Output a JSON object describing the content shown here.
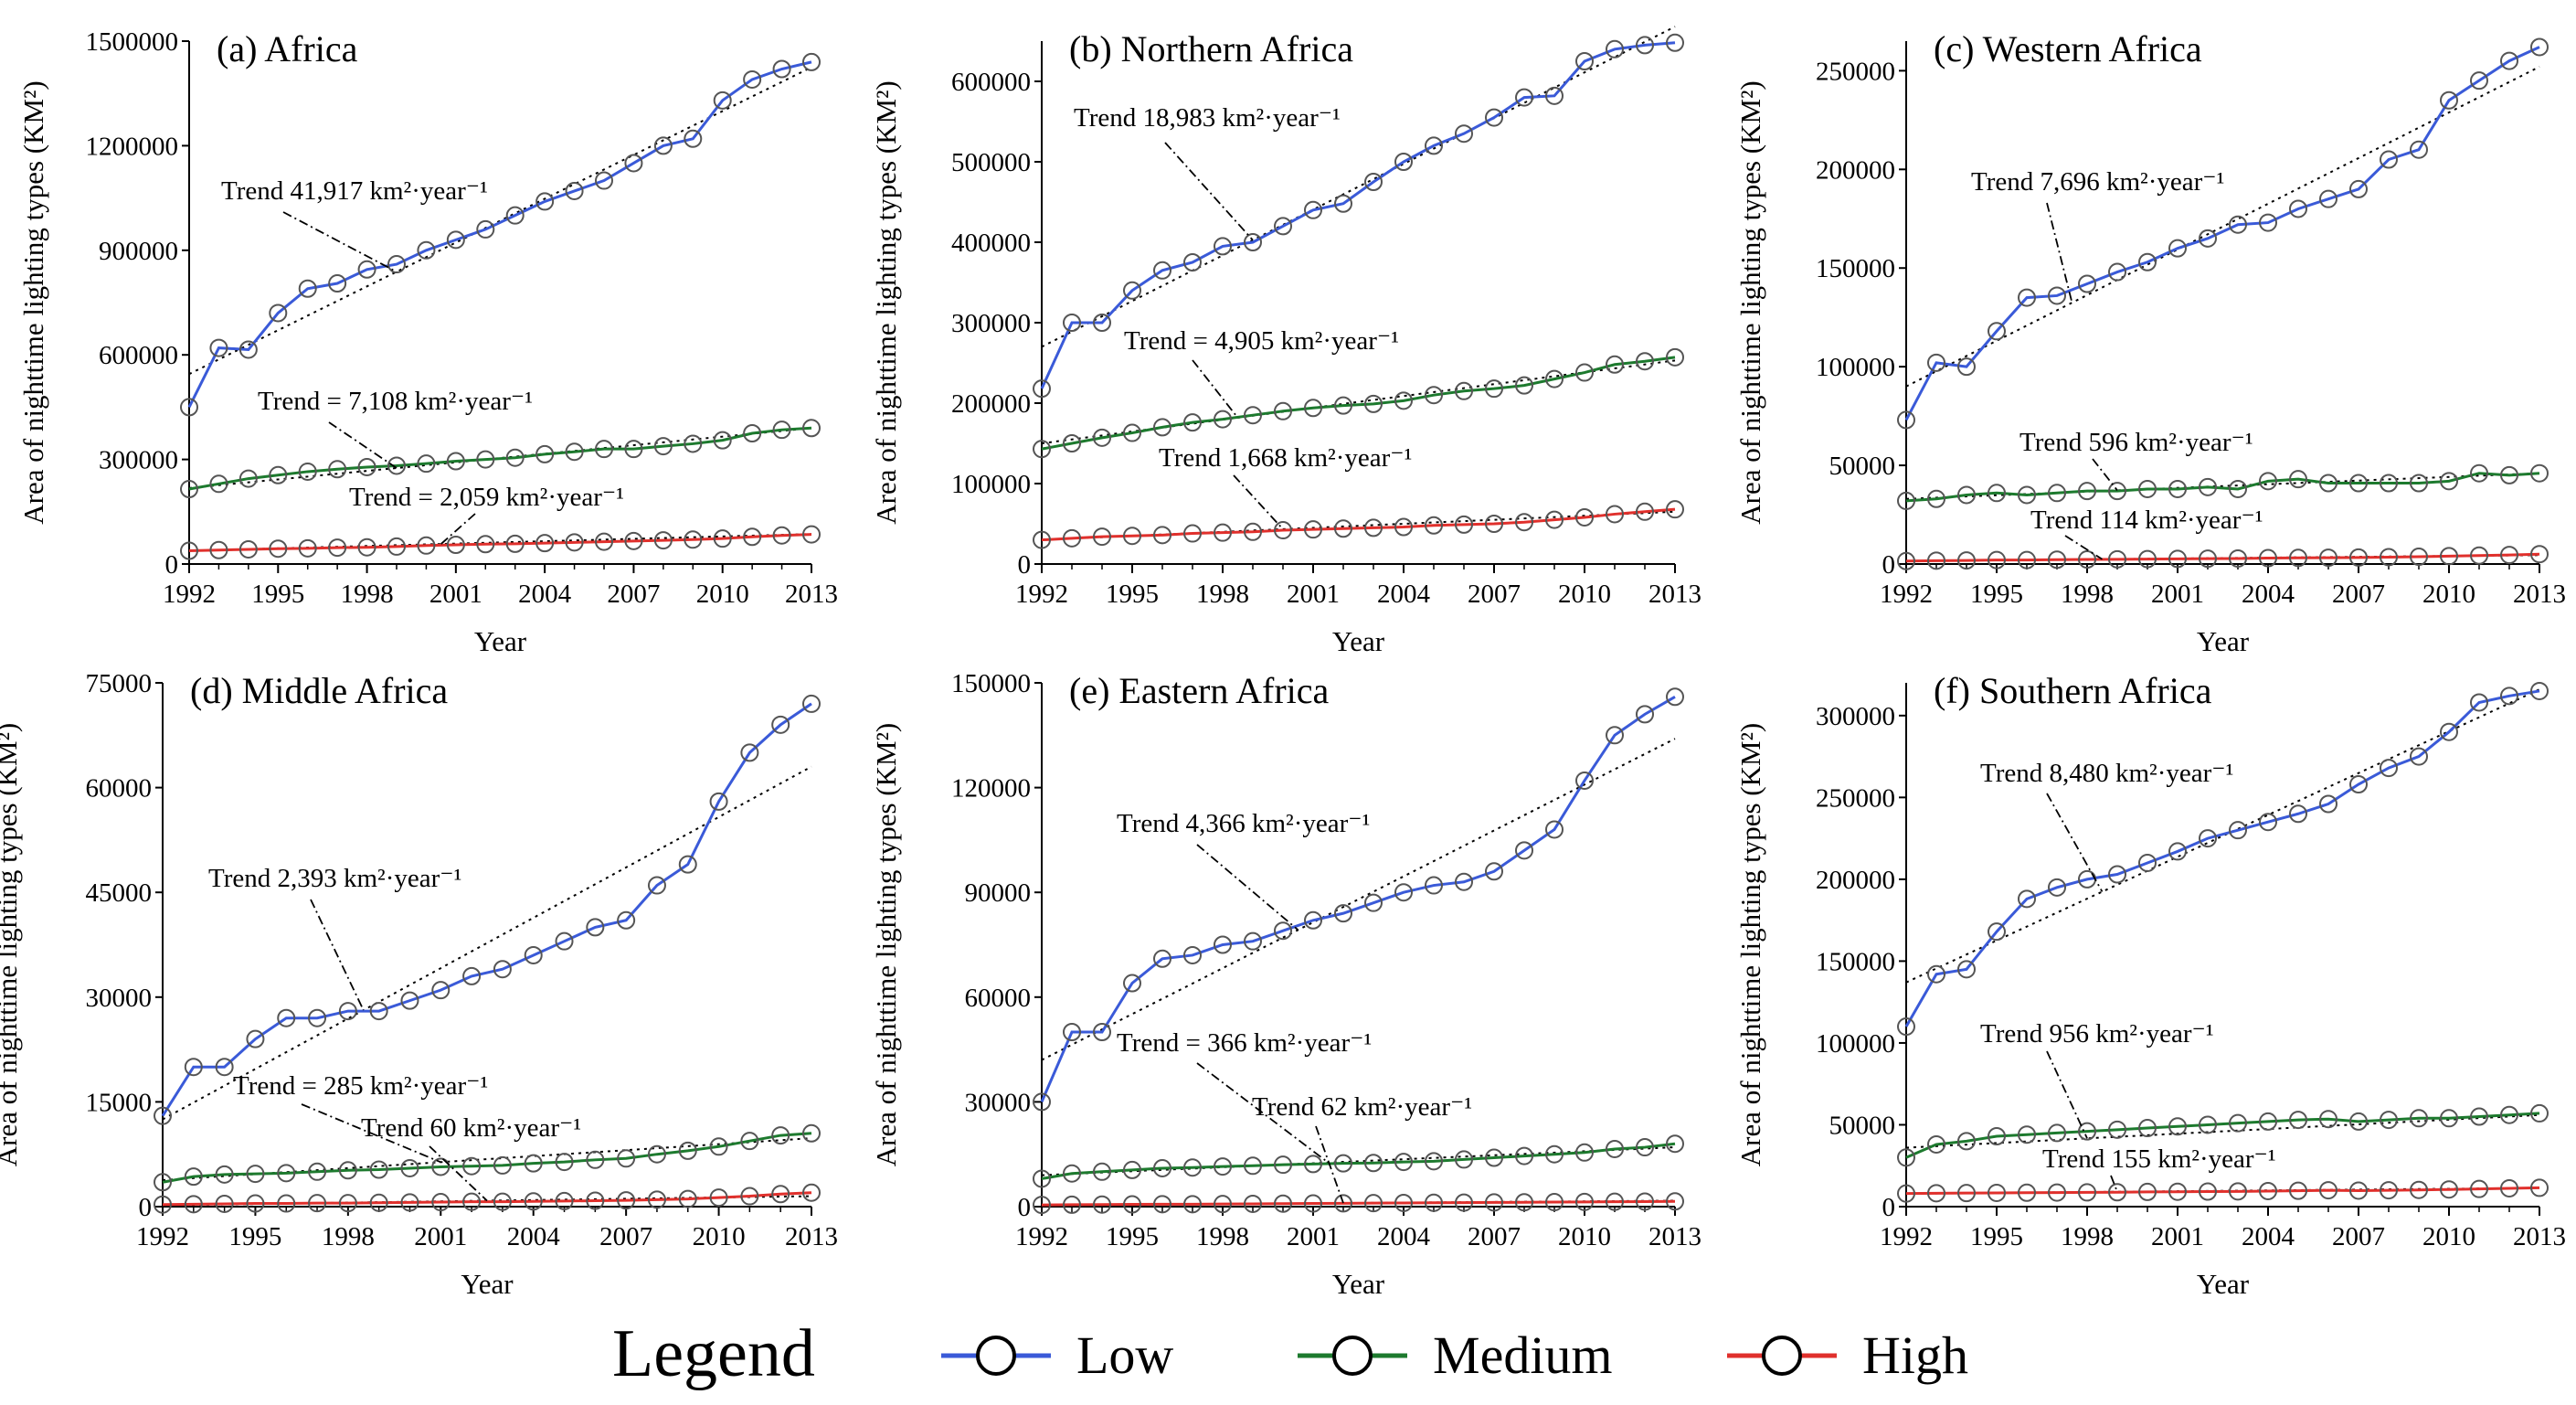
{
  "legend": {
    "title": "Legend",
    "items": [
      {
        "label": "Low",
        "color": "#3a5ad8"
      },
      {
        "label": "Medium",
        "color": "#1d7a2e"
      },
      {
        "label": "High",
        "color": "#e0302c"
      }
    ]
  },
  "chart_data": [
    {
      "type": "line",
      "title": "(a) Africa",
      "xlabel": "Year",
      "ylabel": "Area of nighttime lighting types (KM²)",
      "x": [
        1992,
        1993,
        1994,
        1995,
        1996,
        1997,
        1998,
        1999,
        2000,
        2001,
        2002,
        2003,
        2004,
        2005,
        2006,
        2007,
        2008,
        2009,
        2010,
        2011,
        2012,
        2013
      ],
      "xticks": [
        1992,
        1995,
        1998,
        2001,
        2004,
        2007,
        2010,
        2013
      ],
      "ylim": [
        0,
        1500000
      ],
      "yticks": [
        0,
        300000,
        600000,
        900000,
        1200000,
        1500000
      ],
      "series": [
        {
          "name": "Low",
          "values": [
            450000,
            620000,
            615000,
            720000,
            790000,
            805000,
            845000,
            860000,
            900000,
            930000,
            960000,
            1000000,
            1040000,
            1070000,
            1100000,
            1150000,
            1200000,
            1220000,
            1330000,
            1390000,
            1420000,
            1440000
          ]
        },
        {
          "name": "Medium",
          "values": [
            215000,
            230000,
            245000,
            255000,
            265000,
            272000,
            278000,
            282000,
            288000,
            295000,
            300000,
            305000,
            315000,
            322000,
            330000,
            330000,
            338000,
            345000,
            355000,
            375000,
            385000,
            390000
          ]
        },
        {
          "name": "High",
          "values": [
            38000,
            40000,
            42000,
            44000,
            45000,
            47000,
            48000,
            50000,
            53000,
            55000,
            57000,
            58000,
            60000,
            62000,
            64000,
            66000,
            68000,
            70000,
            73000,
            78000,
            82000,
            85000
          ]
        }
      ],
      "trends": [
        {
          "label": "Trend   41,917 km²·year⁻¹",
          "start": 545000,
          "end": 1425000
        },
        {
          "label": "Trend = 7,108 km²·year⁻¹",
          "start": 218000,
          "end": 390000
        },
        {
          "label": "Trend = 2,059 km²·year⁻¹",
          "start": 38000,
          "end": 86000
        }
      ]
    },
    {
      "type": "line",
      "title": "(b) Northern Africa",
      "xlabel": "Year",
      "ylabel": "Area of nighttime lighting types (KM²)",
      "x": [
        1992,
        1993,
        1994,
        1995,
        1996,
        1997,
        1998,
        1999,
        2000,
        2001,
        2002,
        2003,
        2004,
        2005,
        2006,
        2007,
        2008,
        2009,
        2010,
        2011,
        2012,
        2013
      ],
      "xticks": [
        1992,
        1995,
        1998,
        2001,
        2004,
        2007,
        2010,
        2013
      ],
      "ylim": [
        0,
        650000
      ],
      "yticks": [
        0,
        100000,
        200000,
        300000,
        400000,
        500000,
        600000
      ],
      "series": [
        {
          "name": "Low",
          "values": [
            218000,
            300000,
            300000,
            340000,
            365000,
            375000,
            395000,
            400000,
            420000,
            440000,
            448000,
            475000,
            500000,
            520000,
            535000,
            555000,
            580000,
            582000,
            625000,
            640000,
            645000,
            648000
          ]
        },
        {
          "name": "Medium",
          "values": [
            143000,
            150000,
            157000,
            163000,
            170000,
            176000,
            180000,
            185000,
            190000,
            194000,
            197000,
            199000,
            203000,
            210000,
            215000,
            218000,
            222000,
            230000,
            238000,
            248000,
            252000,
            257000
          ]
        },
        {
          "name": "High",
          "values": [
            30000,
            32000,
            34000,
            35000,
            36000,
            38000,
            39000,
            40000,
            42000,
            43000,
            44000,
            45000,
            46000,
            48000,
            49000,
            50000,
            52000,
            55000,
            58000,
            62000,
            65000,
            68000
          ]
        }
      ],
      "trends": [
        {
          "label": "Trend   18,983 km²·year⁻¹",
          "start": 270000,
          "end": 668000
        },
        {
          "label": "Trend = 4,905 km²·year⁻¹",
          "start": 150000,
          "end": 253000
        },
        {
          "label": "Trend   1,668 km²·year⁻¹",
          "start": 30000,
          "end": 65000
        }
      ]
    },
    {
      "type": "line",
      "title": "(c) Western Africa",
      "xlabel": "Year",
      "ylabel": "Area of nighttime lighting types (KM²)",
      "x": [
        1992,
        1993,
        1994,
        1995,
        1996,
        1997,
        1998,
        1999,
        2000,
        2001,
        2002,
        2003,
        2004,
        2005,
        2006,
        2007,
        2008,
        2009,
        2010,
        2011,
        2012,
        2013
      ],
      "xticks": [
        1992,
        1995,
        1998,
        2001,
        2004,
        2007,
        2010,
        2013
      ],
      "ylim": [
        0,
        265000
      ],
      "yticks": [
        0,
        50000,
        100000,
        150000,
        200000,
        250000
      ],
      "series": [
        {
          "name": "Low",
          "values": [
            73000,
            102000,
            100000,
            118000,
            135000,
            136000,
            142000,
            148000,
            153000,
            160000,
            165000,
            172000,
            173000,
            180000,
            185000,
            190000,
            205000,
            210000,
            235000,
            245000,
            255000,
            262000
          ]
        },
        {
          "name": "Medium",
          "values": [
            32000,
            33000,
            35000,
            36000,
            35000,
            36000,
            37000,
            37000,
            38000,
            38000,
            39000,
            38000,
            42000,
            43000,
            41000,
            41000,
            41000,
            41000,
            42000,
            46000,
            45000,
            46000
          ]
        },
        {
          "name": "High",
          "values": [
            1500,
            1700,
            1800,
            2000,
            2000,
            2200,
            2300,
            2400,
            2500,
            2600,
            2700,
            2800,
            3000,
            3100,
            3200,
            3300,
            3500,
            3700,
            4000,
            4300,
            4600,
            5000
          ]
        }
      ],
      "trends": [
        {
          "label": "Trend   7,696 km²·year⁻¹",
          "start": 90000,
          "end": 252000
        },
        {
          "label": "Trend   596 km²·year⁻¹",
          "start": 33000,
          "end": 46000
        },
        {
          "label": "Trend   114 km²·year⁻¹",
          "start": 1500,
          "end": 4500
        }
      ]
    },
    {
      "type": "line",
      "title": "(d) Middle Africa",
      "xlabel": "Year",
      "ylabel": "Area of nighttime lighting types (KM²)",
      "x": [
        1992,
        1993,
        1994,
        1995,
        1996,
        1997,
        1998,
        1999,
        2000,
        2001,
        2002,
        2003,
        2004,
        2005,
        2006,
        2007,
        2008,
        2009,
        2010,
        2011,
        2012,
        2013
      ],
      "xticks": [
        1992,
        1995,
        1998,
        2001,
        2004,
        2007,
        2010,
        2013
      ],
      "ylim": [
        0,
        75000
      ],
      "yticks": [
        0,
        15000,
        30000,
        45000,
        60000,
        75000
      ],
      "series": [
        {
          "name": "Low",
          "values": [
            13000,
            20000,
            20000,
            24000,
            27000,
            27000,
            28000,
            28000,
            29500,
            31000,
            33000,
            34000,
            36000,
            38000,
            40000,
            41000,
            46000,
            49000,
            58000,
            65000,
            69000,
            72000
          ]
        },
        {
          "name": "Medium",
          "values": [
            3500,
            4300,
            4600,
            4700,
            4800,
            5000,
            5200,
            5300,
            5500,
            5700,
            5800,
            5900,
            6200,
            6400,
            6700,
            6900,
            7500,
            8000,
            8600,
            9400,
            10200,
            10500
          ]
        },
        {
          "name": "High",
          "values": [
            300,
            350,
            400,
            450,
            450,
            500,
            500,
            550,
            600,
            650,
            700,
            700,
            750,
            800,
            850,
            900,
            1000,
            1100,
            1300,
            1500,
            1800,
            2000
          ]
        }
      ],
      "trends": [
        {
          "label": "Trend   2,393 km²·year⁻¹",
          "start": 12500,
          "end": 63000
        },
        {
          "label": "Trend = 285 km²·year⁻¹",
          "start": 3800,
          "end": 9800
        },
        {
          "label": "Trend   60 km²·year⁻¹",
          "start": 200,
          "end": 1500
        }
      ]
    },
    {
      "type": "line",
      "title": "(e) Eastern Africa",
      "xlabel": "Year",
      "ylabel": "Area of nighttime lighting types (KM²)",
      "x": [
        1992,
        1993,
        1994,
        1995,
        1996,
        1997,
        1998,
        1999,
        2000,
        2001,
        2002,
        2003,
        2004,
        2005,
        2006,
        2007,
        2008,
        2009,
        2010,
        2011,
        2012,
        2013
      ],
      "xticks": [
        1992,
        1995,
        1998,
        2001,
        2004,
        2007,
        2010,
        2013
      ],
      "ylim": [
        0,
        150000
      ],
      "yticks": [
        0,
        30000,
        60000,
        90000,
        120000,
        150000
      ],
      "series": [
        {
          "name": "Low",
          "values": [
            30000,
            50000,
            50000,
            64000,
            71000,
            72000,
            75000,
            76000,
            79000,
            82000,
            84000,
            87000,
            90000,
            92000,
            93000,
            96000,
            102000,
            108000,
            122000,
            135000,
            141000,
            146000
          ]
        },
        {
          "name": "Medium",
          "values": [
            8000,
            9500,
            10000,
            10500,
            11000,
            11200,
            11500,
            11700,
            12000,
            12200,
            12400,
            12500,
            12800,
            13000,
            13500,
            14000,
            14500,
            15000,
            15500,
            16500,
            17000,
            18000
          ]
        },
        {
          "name": "High",
          "values": [
            500,
            550,
            600,
            650,
            700,
            700,
            750,
            800,
            850,
            900,
            950,
            1000,
            1050,
            1100,
            1150,
            1200,
            1250,
            1300,
            1350,
            1400,
            1450,
            1500
          ]
        }
      ],
      "trends": [
        {
          "label": "Trend   4,366 km²·year⁻¹",
          "start": 42000,
          "end": 134000
        },
        {
          "label": "Trend = 366 km²·year⁻¹",
          "start": 9000,
          "end": 17000
        },
        {
          "label": "Trend   62 km²·year⁻¹",
          "start": 400,
          "end": 1700
        }
      ]
    },
    {
      "type": "line",
      "title": "(f) Southern Africa",
      "xlabel": "Year",
      "ylabel": "Area of nighttime lighting types (KM²)",
      "x": [
        1992,
        1993,
        1994,
        1995,
        1996,
        1997,
        1998,
        1999,
        2000,
        2001,
        2002,
        2003,
        2004,
        2005,
        2006,
        2007,
        2008,
        2009,
        2010,
        2011,
        2012,
        2013
      ],
      "xticks": [
        1992,
        1995,
        1998,
        2001,
        2004,
        2007,
        2010,
        2013
      ],
      "ylim": [
        0,
        320000
      ],
      "yticks": [
        0,
        50000,
        100000,
        150000,
        200000,
        250000,
        300000
      ],
      "series": [
        {
          "name": "Low",
          "values": [
            110000,
            142000,
            145000,
            168000,
            188000,
            195000,
            200000,
            203000,
            210000,
            217000,
            225000,
            230000,
            235000,
            240000,
            246000,
            258000,
            268000,
            275000,
            290000,
            308000,
            312000,
            315000
          ]
        },
        {
          "name": "Medium",
          "values": [
            30000,
            38000,
            40000,
            43000,
            44000,
            45000,
            46000,
            47000,
            48000,
            49000,
            50000,
            51000,
            52000,
            53000,
            53500,
            52000,
            53000,
            54000,
            54000,
            55000,
            56000,
            57000
          ]
        },
        {
          "name": "High",
          "values": [
            8000,
            8200,
            8300,
            8400,
            8500,
            8600,
            8700,
            8800,
            9000,
            9100,
            9200,
            9300,
            9500,
            9700,
            10000,
            9800,
            10000,
            10200,
            10500,
            10800,
            11200,
            11500
          ]
        }
      ],
      "trends": [
        {
          "label": "Trend   8,480 km²·year⁻¹",
          "start": 137000,
          "end": 316000
        },
        {
          "label": "Trend   956 km²·year⁻¹",
          "start": 36000,
          "end": 56000
        },
        {
          "label": "Trend   155 km²·year⁻¹",
          "start": 7900,
          "end": 11400
        }
      ]
    }
  ]
}
